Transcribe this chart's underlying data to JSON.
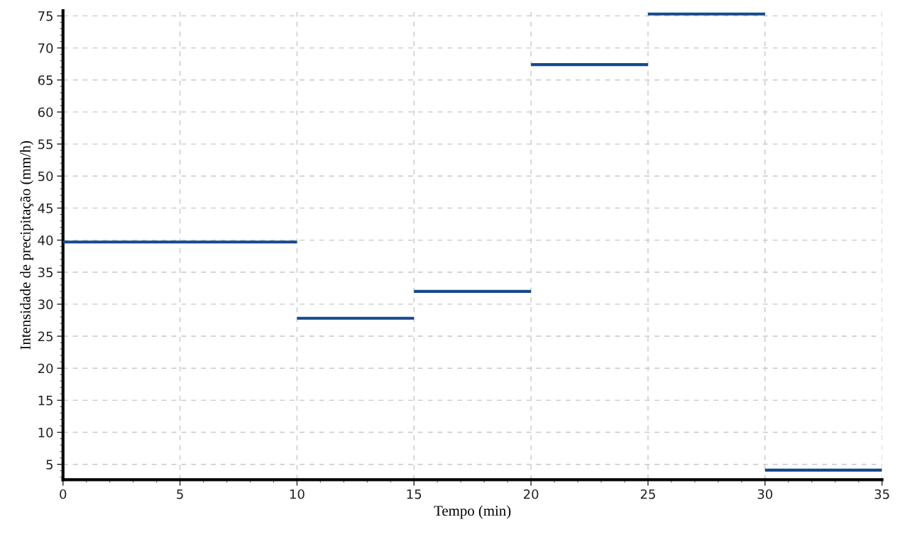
{
  "chart_data": {
    "type": "step",
    "xlabel": "Tempo (min)",
    "ylabel": "Intensidade de precipitação (mm/h)",
    "x": [
      0,
      10,
      15,
      20,
      25,
      30,
      35
    ],
    "series": [
      {
        "color": "#154a8c",
        "values": [
          39.7,
          27.8,
          32.0,
          67.4,
          75.3,
          4.1,
          4.1
        ]
      }
    ],
    "xlim": [
      0,
      35
    ],
    "xticks": [
      0,
      5,
      10,
      15,
      20,
      25,
      30,
      35
    ],
    "ylim": [
      2.6,
      75.8
    ],
    "yticks": [
      5,
      10,
      15,
      20,
      25,
      30,
      35,
      40,
      45,
      50,
      55,
      60,
      65,
      70,
      75
    ],
    "grid": true,
    "line_style": "solid",
    "marker": "none"
  }
}
